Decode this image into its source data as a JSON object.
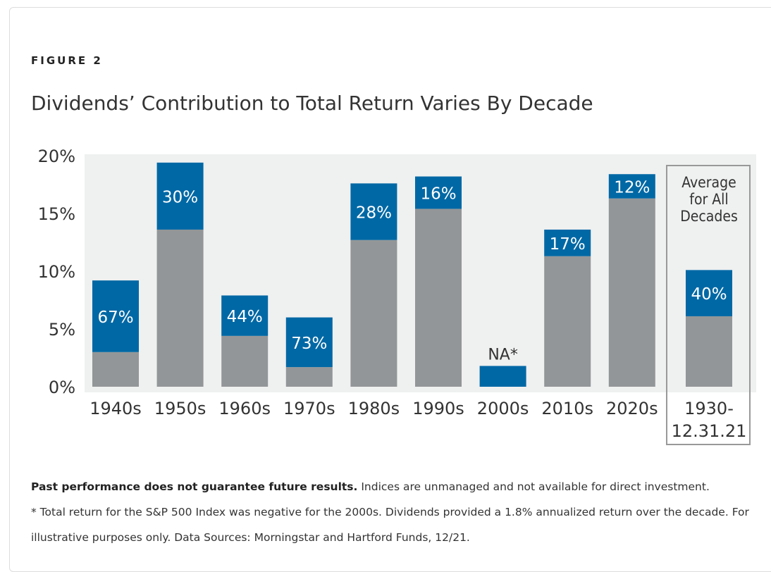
{
  "figure_label": "FIGURE 2",
  "chart_data": {
    "type": "bar",
    "stacked": true,
    "title": "Dividends’ Contribution to Total Return Varies By Decade",
    "categories": [
      "1940s",
      "1950s",
      "1960s",
      "1970s",
      "1980s",
      "1990s",
      "2000s",
      "2010s",
      "2020s",
      "1930-\n12.31.21"
    ],
    "ylim": [
      0,
      20
    ],
    "yticks": [
      "0%",
      "5%",
      "10%",
      "15%",
      "20%"
    ],
    "ytick_values": [
      0,
      5,
      10,
      15,
      20
    ],
    "total_return": [
      9.2,
      19.4,
      7.9,
      6.0,
      17.6,
      18.2,
      1.8,
      13.6,
      18.4,
      10.1
    ],
    "non_dividend_portion": [
      3.0,
      13.6,
      4.4,
      1.7,
      12.7,
      15.4,
      0,
      11.3,
      16.3,
      6.1
    ],
    "dividend_share_labels": [
      "67%",
      "30%",
      "44%",
      "73%",
      "28%",
      "16%",
      "NA*",
      "17%",
      "12%",
      "40%"
    ],
    "highlight_annotation": "Average\nfor All\nDecades",
    "colors": {
      "dividend": "#0068a5",
      "other": "#939698",
      "plot_bg": "#eff0f0"
    },
    "grid": false,
    "legend": "none"
  },
  "footnotes": {
    "bold": "Past performance does not guarantee future results.",
    "line1_rest": " Indices are unmanaged and not available for direct investment.",
    "line2": "* Total return for the S&P 500 Index was negative for the 2000s. Dividends provided a 1.8% annualized return over the decade. For illustrative purposes only. Data Sources: Morningstar and Hartford Funds, 12/21."
  }
}
